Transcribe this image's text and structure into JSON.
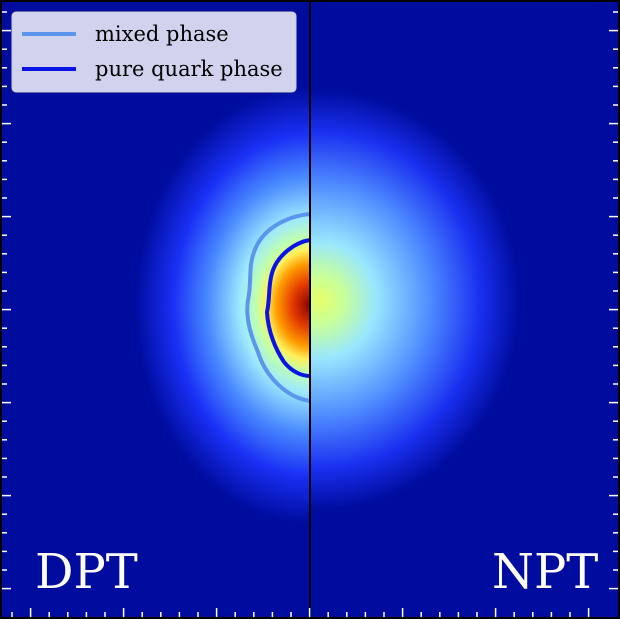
{
  "chart_data": {
    "type": "heatmap",
    "title": "",
    "xlabel": "",
    "ylabel": "",
    "colormap": "jet",
    "panels": [
      {
        "label": "DPT",
        "side": "left"
      },
      {
        "label": "NPT",
        "side": "right"
      }
    ],
    "contours": [
      {
        "name": "mixed phase",
        "color": "#5b96ee",
        "panel": "DPT"
      },
      {
        "name": "pure quark phase",
        "color": "#0a14e6",
        "panel": "DPT"
      }
    ],
    "legend": {
      "placement": "top-left"
    },
    "grid": false
  }
}
